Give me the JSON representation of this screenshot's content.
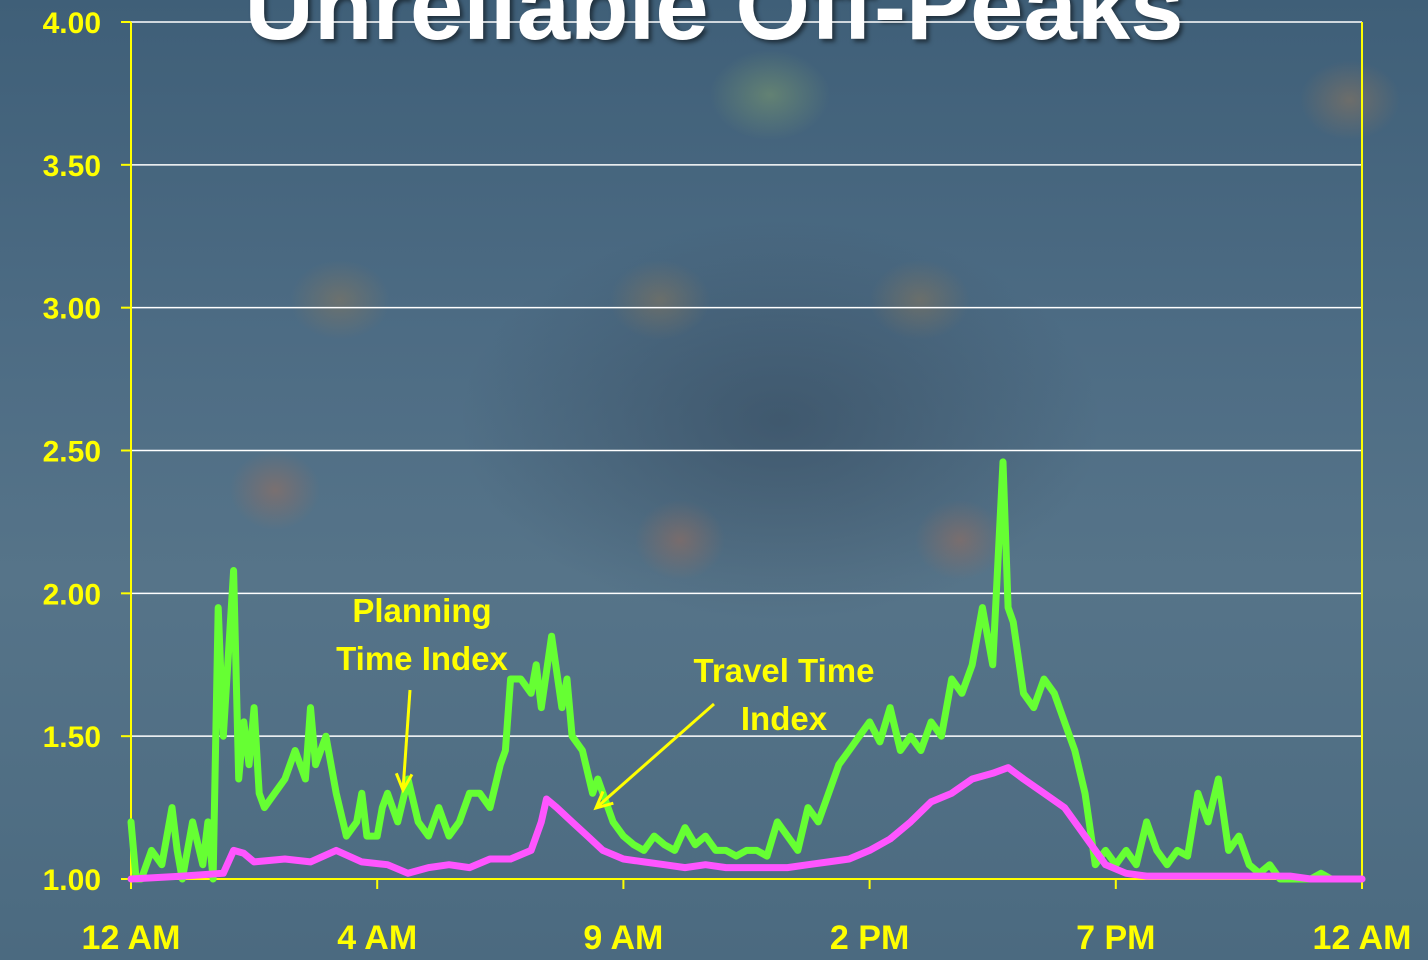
{
  "title": "Unreliable Off-Peaks",
  "colors": {
    "axis": "#ffff00",
    "grid": "#ffffff",
    "planning": "#66ff33",
    "travel": "#ff55ff"
  },
  "chart_data": {
    "type": "line",
    "title": "Unreliable Off-Peaks",
    "xlabel": "",
    "ylabel": "",
    "xlim": [
      0,
      24
    ],
    "ylim": [
      1.0,
      4.0
    ],
    "y_ticks": [
      "1.00",
      "1.50",
      "2.00",
      "2.50",
      "3.00",
      "3.50",
      "4.00"
    ],
    "x_ticks": [
      {
        "hour": 0,
        "label": "12 AM"
      },
      {
        "hour": 4.8,
        "label": "4 AM"
      },
      {
        "hour": 9.6,
        "label": "9 AM"
      },
      {
        "hour": 14.4,
        "label": "2 PM"
      },
      {
        "hour": 19.2,
        "label": "7 PM"
      },
      {
        "hour": 24,
        "label": "12 AM"
      }
    ],
    "grid": true,
    "series": [
      {
        "name": "Planning Time Index",
        "x": [
          0,
          0.1,
          0.2,
          0.4,
          0.6,
          0.8,
          0.9,
          1.0,
          1.2,
          1.4,
          1.5,
          1.6,
          1.7,
          1.8,
          2.0,
          2.1,
          2.2,
          2.3,
          2.4,
          2.5,
          2.6,
          2.8,
          3.0,
          3.2,
          3.4,
          3.5,
          3.6,
          3.8,
          4.0,
          4.2,
          4.4,
          4.5,
          4.6,
          4.8,
          4.9,
          5.0,
          5.2,
          5.4,
          5.6,
          5.8,
          6.0,
          6.2,
          6.4,
          6.6,
          6.8,
          7.0,
          7.2,
          7.3,
          7.4,
          7.6,
          7.8,
          7.9,
          8.0,
          8.2,
          8.4,
          8.5,
          8.6,
          8.8,
          9.0,
          9.1,
          9.2,
          9.4,
          9.6,
          9.8,
          10.0,
          10.2,
          10.4,
          10.6,
          10.8,
          11.0,
          11.2,
          11.4,
          11.6,
          11.8,
          12.0,
          12.2,
          12.4,
          12.6,
          12.8,
          13.0,
          13.2,
          13.4,
          13.6,
          13.8,
          14.0,
          14.2,
          14.4,
          14.6,
          14.8,
          15.0,
          15.2,
          15.4,
          15.6,
          15.8,
          16.0,
          16.2,
          16.4,
          16.6,
          16.8,
          17.0,
          17.1,
          17.2,
          17.4,
          17.6,
          17.8,
          18.0,
          18.2,
          18.4,
          18.6,
          18.8,
          19.0,
          19.2,
          19.4,
          19.6,
          19.8,
          20.0,
          20.2,
          20.4,
          20.6,
          20.8,
          21.0,
          21.2,
          21.4,
          21.6,
          21.8,
          22.0,
          22.2,
          22.4,
          22.6,
          22.8,
          23.0,
          23.2,
          23.4,
          23.6,
          23.8,
          24.0
        ],
        "y": [
          1.2,
          1.0,
          1.0,
          1.1,
          1.05,
          1.25,
          1.1,
          1.0,
          1.2,
          1.05,
          1.2,
          1.0,
          1.95,
          1.5,
          2.08,
          1.35,
          1.55,
          1.4,
          1.6,
          1.3,
          1.25,
          1.3,
          1.35,
          1.45,
          1.35,
          1.6,
          1.4,
          1.5,
          1.3,
          1.15,
          1.2,
          1.3,
          1.15,
          1.15,
          1.25,
          1.3,
          1.2,
          1.35,
          1.2,
          1.15,
          1.25,
          1.15,
          1.2,
          1.3,
          1.3,
          1.25,
          1.4,
          1.45,
          1.7,
          1.7,
          1.65,
          1.75,
          1.6,
          1.85,
          1.6,
          1.7,
          1.5,
          1.45,
          1.3,
          1.35,
          1.3,
          1.2,
          1.15,
          1.12,
          1.1,
          1.15,
          1.12,
          1.1,
          1.18,
          1.12,
          1.15,
          1.1,
          1.1,
          1.08,
          1.1,
          1.1,
          1.08,
          1.2,
          1.15,
          1.1,
          1.25,
          1.2,
          1.3,
          1.4,
          1.45,
          1.5,
          1.55,
          1.48,
          1.6,
          1.45,
          1.5,
          1.45,
          1.55,
          1.5,
          1.7,
          1.65,
          1.75,
          1.95,
          1.75,
          2.46,
          1.95,
          1.9,
          1.65,
          1.6,
          1.7,
          1.65,
          1.55,
          1.45,
          1.3,
          1.05,
          1.1,
          1.05,
          1.1,
          1.05,
          1.2,
          1.1,
          1.05,
          1.1,
          1.08,
          1.3,
          1.2,
          1.35,
          1.1,
          1.15,
          1.05,
          1.02,
          1.05,
          1.0,
          1.0,
          1.0,
          1.0,
          1.02,
          1.0,
          1.0,
          1.0,
          1.0
        ]
      },
      {
        "name": "Travel Time Index",
        "x": [
          0,
          1,
          1.8,
          2.0,
          2.2,
          2.4,
          3.0,
          3.5,
          4.0,
          4.5,
          5.0,
          5.4,
          5.8,
          6.2,
          6.6,
          7.0,
          7.4,
          7.8,
          8.0,
          8.1,
          8.3,
          8.6,
          8.9,
          9.2,
          9.6,
          10.0,
          10.4,
          10.8,
          11.2,
          11.6,
          12.0,
          12.4,
          12.8,
          13.2,
          13.6,
          14.0,
          14.4,
          14.8,
          15.2,
          15.6,
          16.0,
          16.4,
          16.8,
          17.1,
          17.4,
          17.8,
          18.2,
          18.6,
          19.0,
          19.4,
          19.8,
          20.2,
          20.6,
          21.0,
          21.4,
          21.8,
          22.2,
          22.6,
          23.0,
          23.4,
          23.8,
          24.0
        ],
        "y": [
          1.0,
          1.01,
          1.02,
          1.1,
          1.09,
          1.06,
          1.07,
          1.06,
          1.1,
          1.06,
          1.05,
          1.02,
          1.04,
          1.05,
          1.04,
          1.07,
          1.07,
          1.1,
          1.2,
          1.28,
          1.25,
          1.2,
          1.15,
          1.1,
          1.07,
          1.06,
          1.05,
          1.04,
          1.05,
          1.04,
          1.04,
          1.04,
          1.04,
          1.05,
          1.06,
          1.07,
          1.1,
          1.14,
          1.2,
          1.27,
          1.3,
          1.35,
          1.37,
          1.39,
          1.35,
          1.3,
          1.25,
          1.15,
          1.05,
          1.02,
          1.01,
          1.01,
          1.01,
          1.01,
          1.01,
          1.01,
          1.01,
          1.01,
          1.0,
          1.0,
          1.0,
          1.0
        ]
      }
    ],
    "annotations": [
      {
        "lines": [
          "Planning",
          "Time Index"
        ],
        "points_to": "Planning Time Index"
      },
      {
        "lines": [
          "Travel Time",
          "Index"
        ],
        "points_to": "Travel Time Index"
      }
    ]
  }
}
